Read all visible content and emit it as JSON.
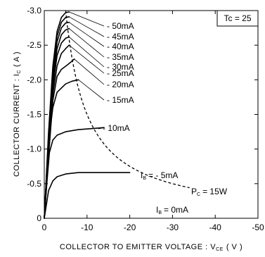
{
  "chart_data": {
    "type": "line",
    "xlabel": "COLLECTOR TO EMITTER VOLTAGE : V",
    "xlabel_sub": "CE",
    "xlabel_unit": "( V )",
    "ylabel": "COLLECTOR CURRENT : I",
    "ylabel_sub": "C",
    "ylabel_unit": "( A )",
    "xlim": [
      0,
      -50
    ],
    "ylim": [
      0,
      -3.0
    ],
    "xticks": [
      0,
      -10,
      -20,
      -30,
      -40,
      -50
    ],
    "xtick_labels": [
      "0",
      "-10",
      "-20",
      "-30",
      "-40",
      "-50"
    ],
    "yticks": [
      0,
      -0.5,
      -1.0,
      -1.5,
      -2.0,
      -2.5,
      -3.0
    ],
    "ytick_labels": [
      "0",
      "-0.5",
      "-1.0",
      "-1.5",
      "-2.0",
      "-2.5",
      "-3.0"
    ],
    "grid": false,
    "condition_label": "Tc = 25",
    "series": [
      {
        "name": "- 5mA",
        "points": [
          [
            0,
            0
          ],
          [
            -1,
            -0.4
          ],
          [
            -2,
            -0.54
          ],
          [
            -3,
            -0.6
          ],
          [
            -5,
            -0.64
          ],
          [
            -8,
            -0.66
          ],
          [
            -12,
            -0.66
          ],
          [
            -16,
            -0.66
          ],
          [
            -20,
            -0.66
          ]
        ]
      },
      {
        "name": "- 10mA",
        "points": [
          [
            0,
            0
          ],
          [
            -0.6,
            -0.5
          ],
          [
            -1.2,
            -0.95
          ],
          [
            -2,
            -1.13
          ],
          [
            -3,
            -1.2
          ],
          [
            -5,
            -1.25
          ],
          [
            -8,
            -1.28
          ],
          [
            -12,
            -1.3
          ],
          [
            -14,
            -1.31
          ]
        ]
      },
      {
        "name": "- 15mA",
        "points": [
          [
            0,
            0
          ],
          [
            -0.6,
            -0.6
          ],
          [
            -1.2,
            -1.2
          ],
          [
            -2,
            -1.6
          ],
          [
            -3,
            -1.82
          ],
          [
            -5,
            -1.94
          ],
          [
            -6.5,
            -1.98
          ],
          [
            -8,
            -2.0
          ]
        ]
      },
      {
        "name": "- 20mA",
        "points": [
          [
            0,
            0
          ],
          [
            -1,
            -0.9
          ],
          [
            -2,
            -1.7
          ],
          [
            -3,
            -2.05
          ],
          [
            -4,
            -2.15
          ],
          [
            -5.5,
            -2.22
          ],
          [
            -6.5,
            -2.27
          ],
          [
            -7,
            -2.3
          ]
        ]
      },
      {
        "name": "- 25mA",
        "points": [
          [
            0,
            0
          ],
          [
            -1,
            -1.0
          ],
          [
            -2,
            -1.8
          ],
          [
            -3,
            -2.2
          ],
          [
            -4,
            -2.38
          ],
          [
            -5,
            -2.45
          ],
          [
            -5.8,
            -2.5
          ]
        ]
      },
      {
        "name": "- 30mA",
        "points": [
          [
            0,
            0
          ],
          [
            -1,
            -1.05
          ],
          [
            -2,
            -1.9
          ],
          [
            -3,
            -2.35
          ],
          [
            -4,
            -2.53
          ],
          [
            -5,
            -2.6
          ],
          [
            -5.8,
            -2.62
          ]
        ]
      },
      {
        "name": "- 35mA",
        "points": [
          [
            0,
            0
          ],
          [
            -1,
            -1.1
          ],
          [
            -2,
            -2.0
          ],
          [
            -3,
            -2.45
          ],
          [
            -4,
            -2.65
          ],
          [
            -5,
            -2.72
          ],
          [
            -5.8,
            -2.74
          ]
        ]
      },
      {
        "name": "- 40mA",
        "points": [
          [
            0,
            0
          ],
          [
            -1,
            -1.15
          ],
          [
            -2,
            -2.08
          ],
          [
            -3,
            -2.55
          ],
          [
            -4,
            -2.75
          ],
          [
            -5,
            -2.82
          ],
          [
            -5.8,
            -2.83
          ]
        ]
      },
      {
        "name": "- 45mA",
        "points": [
          [
            0,
            0
          ],
          [
            -1,
            -1.2
          ],
          [
            -2,
            -2.15
          ],
          [
            -3,
            -2.63
          ],
          [
            -4,
            -2.83
          ],
          [
            -5,
            -2.9
          ],
          [
            -5.8,
            -2.91
          ]
        ]
      },
      {
        "name": "- 50mA",
        "points": [
          [
            0,
            0
          ],
          [
            -1,
            -1.25
          ],
          [
            -2,
            -2.2
          ],
          [
            -3,
            -2.7
          ],
          [
            -4,
            -2.9
          ],
          [
            -5,
            -2.97
          ],
          [
            -5.8,
            -2.98
          ]
        ]
      }
    ],
    "power_limit": {
      "label": "P",
      "label_sub": "C",
      "label_value": "= 15W",
      "watts": 15,
      "x_range": [
        -5,
        -34
      ]
    },
    "baseline_label": {
      "text": "I",
      "sub": "B",
      "value": "= 0mA"
    },
    "ib5_label": {
      "text": "I",
      "sub": "B",
      "value": "= - 5mA"
    }
  }
}
